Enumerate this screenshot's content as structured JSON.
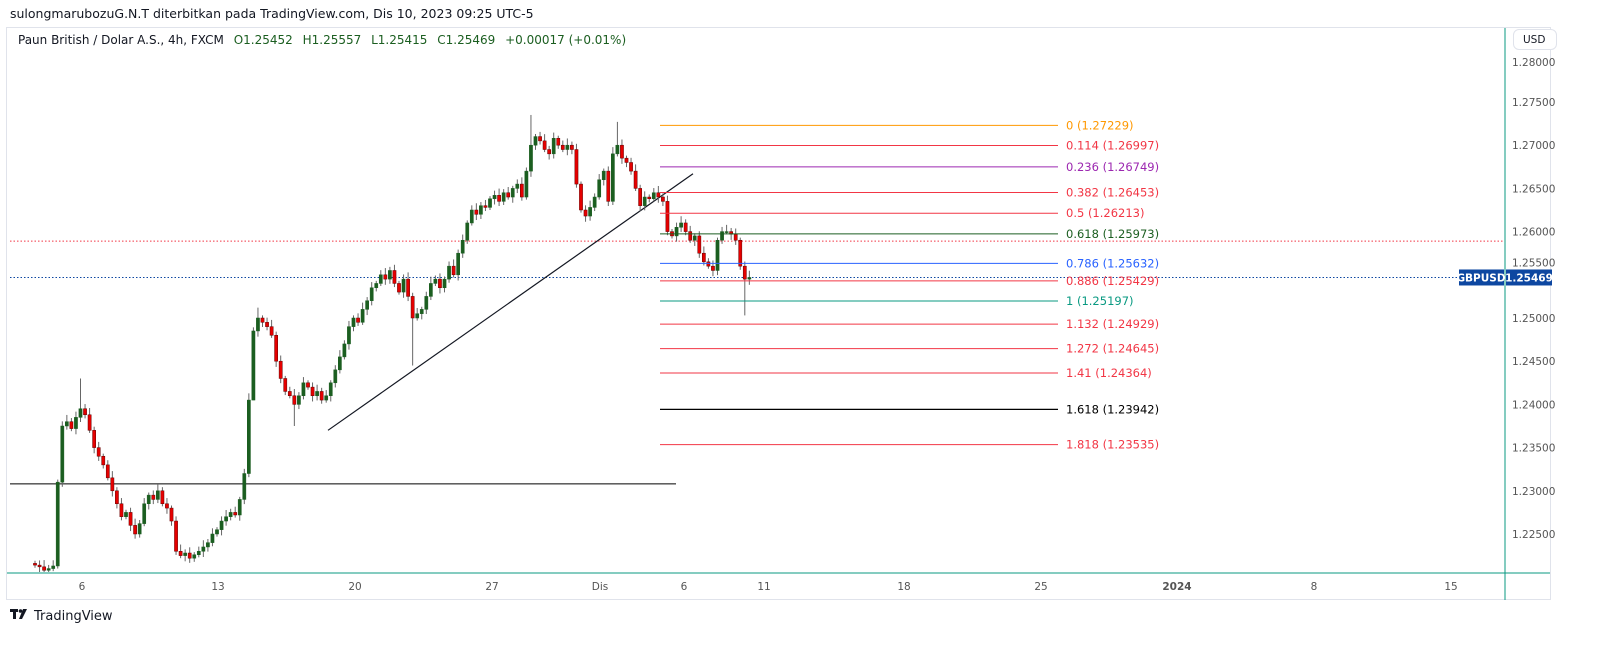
{
  "header": {
    "published": "sulongmarubozuG.N.T diterbitkan pada TradingView.com, Dis 10, 2023 09:25 UTC-5"
  },
  "legend": {
    "title": "Paun British / Dolar A.S., 4h, FXCM",
    "open": "O1.25452",
    "high": "H1.25557",
    "low": "L1.25415",
    "close": "C1.25469",
    "change": "+0.00017 (+0.01%)"
  },
  "currency_button": "USD",
  "symbol_tag": "GBPUSD",
  "last_price_tag": "1.25469",
  "brand": {
    "name": "TradingView",
    "logo_text": "TV"
  },
  "colors": {
    "up": "#1b5e20",
    "down": "#e50000",
    "axis_line": "#089981",
    "last_price": "#0d47a1",
    "red_dotted": "#f23645"
  },
  "chart_data": {
    "type": "candlestick",
    "symbol": "GBPUSD",
    "timeframe": "4h",
    "price_ticks": [
      "1.28000",
      "1.27500",
      "1.27000",
      "1.26500",
      "1.26000",
      "1.25500",
      "1.25000",
      "1.24500",
      "1.24000",
      "1.23500",
      "1.23000",
      "1.22500"
    ],
    "price_tick_values": [
      1.28,
      1.275,
      1.27,
      1.265,
      1.26,
      1.255,
      1.25,
      1.245,
      1.24,
      1.235,
      1.23,
      1.225
    ],
    "time_ticks": [
      "6",
      "13",
      "20",
      "27",
      "Dis",
      "6",
      "11",
      "18",
      "25",
      "2024",
      "8",
      "15"
    ],
    "time_ticks_bold": [
      false,
      false,
      false,
      false,
      false,
      false,
      false,
      false,
      false,
      true,
      false,
      false
    ],
    "ylim": [
      1.2205,
      1.2815
    ],
    "closes": [
      1.2214,
      1.2212,
      1.2208,
      1.221,
      1.2213,
      1.231,
      1.2375,
      1.238,
      1.2372,
      1.2385,
      1.2395,
      1.2388,
      1.237,
      1.235,
      1.234,
      1.233,
      1.2315,
      1.23,
      1.2285,
      1.227,
      1.2275,
      1.226,
      1.225,
      1.2262,
      1.2285,
      1.2295,
      1.229,
      1.23,
      1.2285,
      1.228,
      1.2265,
      1.223,
      1.2225,
      1.2228,
      1.2222,
      1.2226,
      1.223,
      1.2235,
      1.224,
      1.225,
      1.2255,
      1.2265,
      1.227,
      1.2275,
      1.2272,
      1.229,
      1.232,
      1.2405,
      1.2485,
      1.25,
      1.2495,
      1.249,
      1.248,
      1.245,
      1.243,
      1.2415,
      1.241,
      1.24,
      1.241,
      1.2425,
      1.242,
      1.241,
      1.2415,
      1.2405,
      1.241,
      1.2425,
      1.244,
      1.2455,
      1.247,
      1.249,
      1.25,
      1.2495,
      1.251,
      1.252,
      1.2535,
      1.254,
      1.255,
      1.2545,
      1.2555,
      1.254,
      1.253,
      1.2545,
      1.2525,
      1.25,
      1.2505,
      1.251,
      1.2525,
      1.254,
      1.2545,
      1.2535,
      1.2545,
      1.256,
      1.255,
      1.2575,
      1.259,
      1.261,
      1.2625,
      1.262,
      1.263,
      1.2628,
      1.2638,
      1.2642,
      1.2635,
      1.2645,
      1.264,
      1.265,
      1.2655,
      1.264,
      1.267,
      1.27,
      1.271,
      1.2705,
      1.2695,
      1.269,
      1.2708,
      1.27,
      1.2695,
      1.27,
      1.2695,
      1.2655,
      1.2625,
      1.2618,
      1.2628,
      1.264,
      1.266,
      1.267,
      1.2635,
      1.269,
      1.27,
      1.2685,
      1.268,
      1.267,
      1.265,
      1.263,
      1.264,
      1.2638,
      1.2645,
      1.264,
      1.2635,
      1.26,
      1.2595,
      1.2605,
      1.261,
      1.26,
      1.259,
      1.2595,
      1.2575,
      1.2565,
      1.256,
      1.2555,
      1.259,
      1.26,
      1.26,
      1.2597,
      1.259,
      1.256,
      1.2545,
      1.25469
    ],
    "first_open": 1.2216,
    "low_overrides": {
      "5": 1.221,
      "48": 1.2405,
      "83": 1.2445,
      "156": 1.2503,
      "57": 1.2375
    },
    "high_overrides": {
      "10": 1.243,
      "109": 1.2735,
      "128": 1.2727,
      "49": 1.2512
    },
    "horizontal_line": 1.2308,
    "red_dotted_line": 1.2589,
    "last_price": 1.25469,
    "trendline": {
      "from_price": 1.237,
      "to_price": 1.2667
    },
    "fibonacci": [
      {
        "level": "0",
        "price": 1.27229,
        "label": "0 (1.27229)",
        "color": "#ff9800"
      },
      {
        "level": "0.114",
        "price": 1.26997,
        "label": "0.114 (1.26997)",
        "color": "#f23645"
      },
      {
        "level": "0.236",
        "price": 1.26749,
        "label": "0.236 (1.26749)",
        "color": "#9c27b0"
      },
      {
        "level": "0.382",
        "price": 1.26453,
        "label": "0.382 (1.26453)",
        "color": "#f23645"
      },
      {
        "level": "0.5",
        "price": 1.26213,
        "label": "0.5 (1.26213)",
        "color": "#f23645"
      },
      {
        "level": "0.618",
        "price": 1.25973,
        "label": "0.618 (1.25973)",
        "color": "#1b5e20"
      },
      {
        "level": "0.786",
        "price": 1.25632,
        "label": "0.786 (1.25632)",
        "color": "#2962ff"
      },
      {
        "level": "0.886",
        "price": 1.25429,
        "label": "0.886 (1.25429)",
        "color": "#f23645"
      },
      {
        "level": "1",
        "price": 1.25197,
        "label": "1 (1.25197)",
        "color": "#089981"
      },
      {
        "level": "1.132",
        "price": 1.24929,
        "label": "1.132 (1.24929)",
        "color": "#f23645"
      },
      {
        "level": "1.272",
        "price": 1.24645,
        "label": "1.272 (1.24645)",
        "color": "#f23645"
      },
      {
        "level": "1.41",
        "price": 1.24364,
        "label": "1.41 (1.24364)",
        "color": "#f23645"
      },
      {
        "level": "1.618",
        "price": 1.23942,
        "label": "1.618 (1.23942)",
        "color": "#000000"
      },
      {
        "level": "1.818",
        "price": 1.23535,
        "label": "1.818 (1.23535)",
        "color": "#f23645"
      }
    ]
  }
}
